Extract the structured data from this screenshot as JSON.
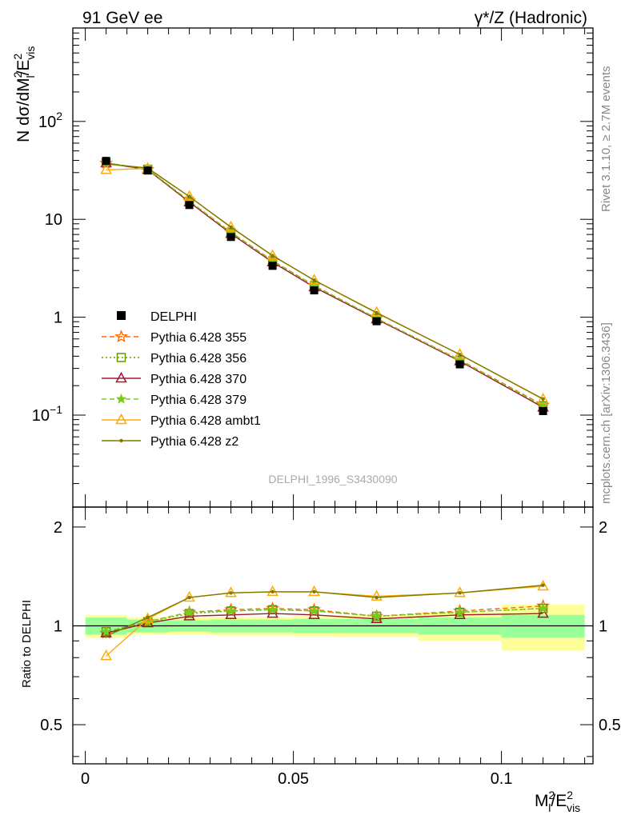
{
  "header": {
    "left_label": "91 GeV ee",
    "right_label": "γ*/Z (Hadronic)"
  },
  "side_labels": {
    "rivet": "Rivet 3.1.10, ≥ 2.7M events",
    "mcplots": "mcplots.cern.ch [arXiv:1306.3436]"
  },
  "watermark": "DELPHI_1996_S3430090",
  "axes": {
    "ylabel_main_prefix": "N dσ/dM",
    "ylabel_main_sub1": "l",
    "ylabel_main_sup1": "2",
    "ylabel_main_mid": "/E",
    "ylabel_main_sup2": "2",
    "ylabel_main_sub2": "vis",
    "ylabel_ratio": "Ratio to DELPHI",
    "xlabel_m": "M",
    "xlabel_sub_l": "l",
    "xlabel_sup": "2",
    "xlabel_e": "/E",
    "xlabel_sup2": "2",
    "xlabel_sub_vis": "vis"
  },
  "main_ticks": [
    {
      "value": 0.1,
      "base": "10",
      "exp": "−1"
    },
    {
      "value": 1,
      "base": "1",
      "exp": ""
    },
    {
      "value": 10,
      "base": "10",
      "exp": ""
    },
    {
      "value": 100,
      "base": "10",
      "exp": "2"
    }
  ],
  "ratio_ticks": [
    {
      "value": 0.5,
      "label": "0.5"
    },
    {
      "value": 1,
      "label": "1"
    },
    {
      "value": 2,
      "label": "2"
    }
  ],
  "x_ticks": [
    {
      "value": 0,
      "label": "0"
    },
    {
      "value": 0.05,
      "label": "0.05"
    },
    {
      "value": 0.1,
      "label": "0.1"
    }
  ],
  "chart_data": {
    "type": "line",
    "xlim": [
      -0.003,
      0.122
    ],
    "ylim_main": [
      0.0115,
      900
    ],
    "yscale_main": "log",
    "ylim_ratio": [
      0.38,
      2.3
    ],
    "yscale_ratio": "log",
    "legend_position": "middle-left",
    "x": [
      0.005,
      0.015,
      0.025,
      0.035,
      0.045,
      0.055,
      0.07,
      0.09,
      0.11
    ],
    "bin_edges": [
      0.0,
      0.01,
      0.02,
      0.03,
      0.04,
      0.05,
      0.06,
      0.08,
      0.1,
      0.12
    ],
    "band_inner": [
      0.06,
      0.045,
      0.04,
      0.045,
      0.045,
      0.05,
      0.05,
      0.06,
      0.08
    ],
    "band_outer": [
      0.08,
      0.06,
      0.06,
      0.065,
      0.065,
      0.07,
      0.075,
      0.1,
      0.16
    ],
    "data": {
      "name": "DELPHI",
      "values": [
        39.5,
        31.5,
        14.0,
        6.6,
        3.35,
        1.88,
        0.91,
        0.33,
        0.11
      ]
    },
    "series": [
      {
        "name": "Pythia 6.428 355",
        "color": "#ff6600",
        "dash": "6,4",
        "marker": "star-open",
        "ratio": [
          0.95,
          1.03,
          1.1,
          1.12,
          1.13,
          1.12,
          1.07,
          1.11,
          1.15
        ]
      },
      {
        "name": "Pythia 6.428 356",
        "color": "#669900",
        "dash": "2,3",
        "marker": "square-open",
        "ratio": [
          0.96,
          1.03,
          1.09,
          1.11,
          1.12,
          1.11,
          1.07,
          1.1,
          1.13
        ]
      },
      {
        "name": "Pythia 6.428 370",
        "color": "#a01830",
        "dash": "",
        "marker": "triangle-open",
        "ratio": [
          0.95,
          1.02,
          1.07,
          1.08,
          1.09,
          1.08,
          1.05,
          1.08,
          1.09
        ]
      },
      {
        "name": "Pythia 6.428 379",
        "color": "#77cc22",
        "dash": "6,4",
        "marker": "star",
        "ratio": [
          0.96,
          1.03,
          1.1,
          1.11,
          1.12,
          1.11,
          1.07,
          1.1,
          1.13
        ]
      },
      {
        "name": "Pythia 6.428 ambt1",
        "color": "#ffaa00",
        "dash": "",
        "marker": "triangle-open",
        "ratio": [
          0.81,
          1.05,
          1.22,
          1.26,
          1.27,
          1.27,
          1.23,
          1.26,
          1.32
        ]
      },
      {
        "name": "Pythia 6.428 z2",
        "color": "#7a7a00",
        "dash": "",
        "marker": "dot",
        "ratio": [
          0.93,
          1.06,
          1.22,
          1.26,
          1.27,
          1.27,
          1.22,
          1.26,
          1.33
        ]
      }
    ]
  }
}
